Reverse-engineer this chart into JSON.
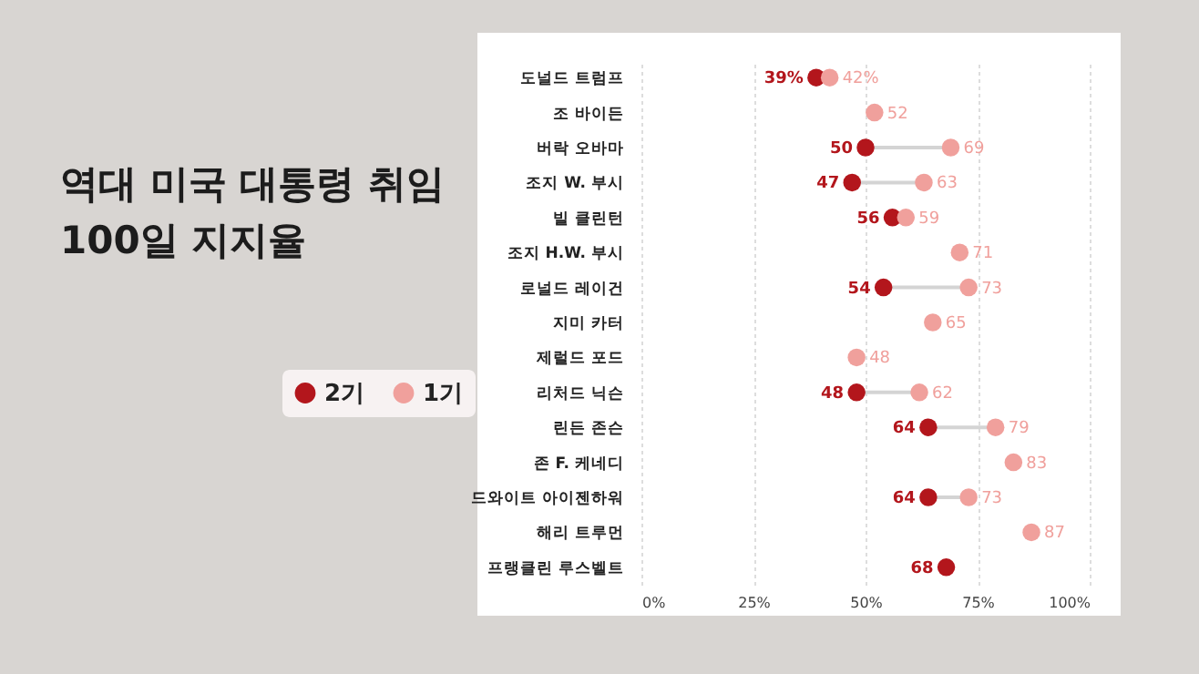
{
  "chart_data": {
    "type": "scatter",
    "orientation": "horizontal",
    "title": "역대 미국 대통령 취임 100일 지지율",
    "categories": [
      "도널드 트럼프",
      "조 바이든",
      "버락 오바마",
      "조지 W. 부시",
      "빌 클린턴",
      "조지 H.W. 부시",
      "로널드 레이건",
      "지미 카터",
      "제럴드 포드",
      "리처드 닉슨",
      "린든 존슨",
      "존 F. 케네디",
      "드와이트 아이젠하워",
      "해리 트루먼",
      "프랭클린 루스벨트"
    ],
    "series": [
      {
        "name": "2기",
        "color": "#b3161c",
        "values": [
          39,
          null,
          50,
          47,
          56,
          null,
          54,
          null,
          null,
          48,
          64,
          null,
          64,
          null,
          68
        ],
        "value_labels": [
          "39%",
          null,
          "50",
          "47",
          "56",
          null,
          "54",
          null,
          null,
          "48",
          "64",
          null,
          "64",
          null,
          "68"
        ]
      },
      {
        "name": "1기",
        "color": "#f0a09c",
        "values": [
          42,
          52,
          69,
          63,
          59,
          71,
          73,
          65,
          48,
          62,
          79,
          83,
          73,
          87,
          null
        ],
        "value_labels": [
          "42%",
          "52",
          "69",
          "63",
          "59",
          "71",
          "73",
          "65",
          "48",
          "62",
          "79",
          "83",
          "73",
          "87",
          null
        ]
      }
    ],
    "xlim": [
      0,
      100
    ],
    "xticks": [
      {
        "value": 0,
        "label": "0%"
      },
      {
        "value": 25,
        "label": "25%"
      },
      {
        "value": 50,
        "label": "50%"
      },
      {
        "value": 75,
        "label": "75%"
      },
      {
        "value": 100,
        "label": "100%"
      }
    ],
    "grid": "x",
    "legend": "left",
    "marker": "circle"
  }
}
